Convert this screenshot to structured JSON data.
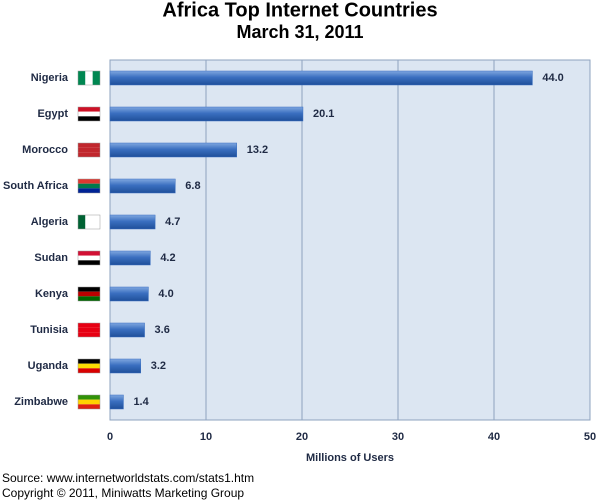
{
  "chart_data": {
    "type": "bar",
    "orientation": "horizontal",
    "title": "Africa Top Internet Countries",
    "subtitle": "March 31, 2011",
    "categories": [
      "Nigeria",
      "Egypt",
      "Morocco",
      "South Africa",
      "Algeria",
      "Sudan",
      "Kenya",
      "Tunisia",
      "Uganda",
      "Zimbabwe"
    ],
    "values": [
      44.0,
      20.1,
      13.2,
      6.8,
      4.7,
      4.2,
      4.0,
      3.6,
      3.2,
      1.4
    ],
    "value_labels": [
      "44.0",
      "20.1",
      "13.2",
      "6.8",
      "4.7",
      "4.2",
      "4.0",
      "3.6",
      "3.2",
      "1.4"
    ],
    "color": "#3a6fc0",
    "xlim": [
      0,
      50
    ],
    "xticks": [
      0,
      10,
      20,
      30,
      40,
      50
    ],
    "grid": true,
    "xlabel": "Millions of Users",
    "source": "Source: www.internetworldstats.com/stats1.htm",
    "copyright": "Copyright © 2011, Miniwatts Marketing Group"
  }
}
